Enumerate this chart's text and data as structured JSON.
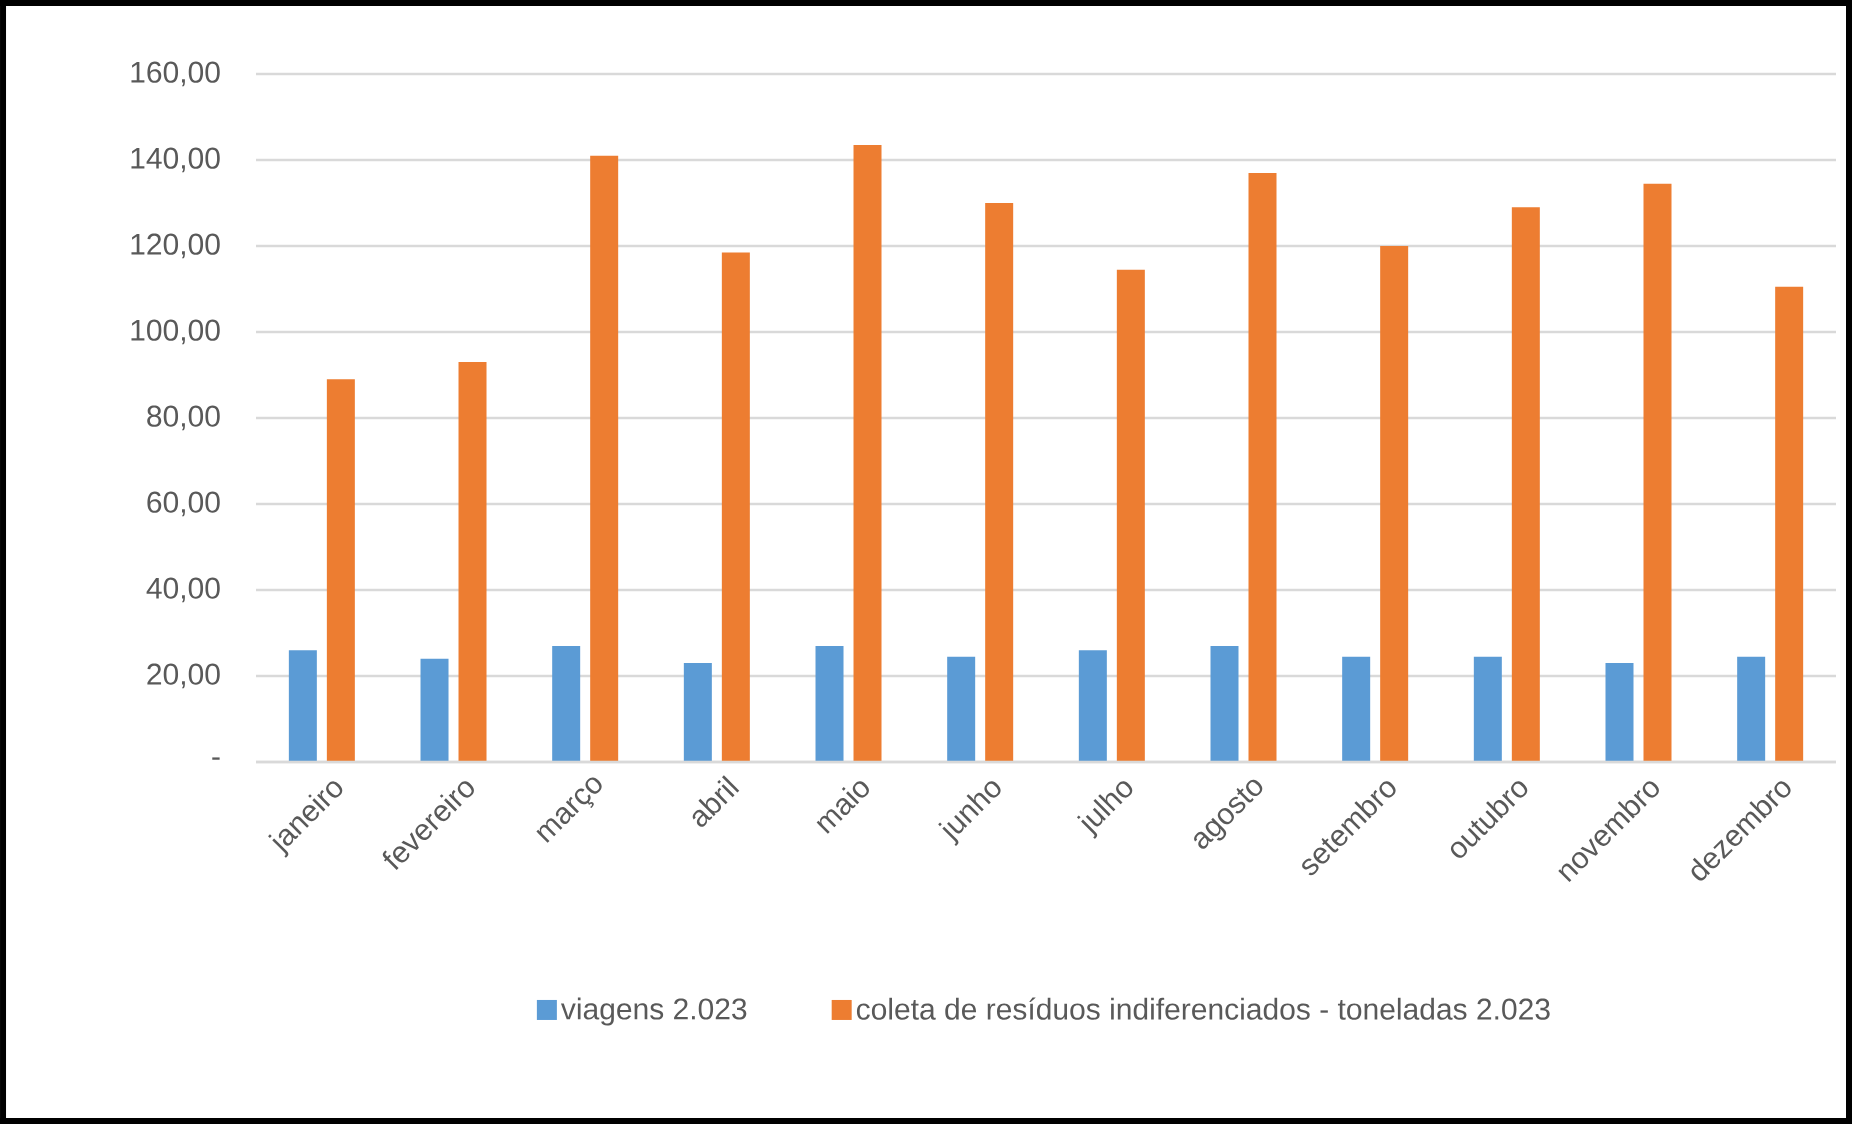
{
  "chart_data": {
    "type": "bar",
    "categories": [
      "janeiro",
      "fevereiro",
      "março",
      "abril",
      "maio",
      "junho",
      "julho",
      "agosto",
      "setembro",
      "outubro",
      "novembro",
      "dezembro"
    ],
    "series": [
      {
        "name": "viagens  2.023",
        "color": "#5b9bd5",
        "values": [
          26,
          24,
          27,
          23,
          27,
          24.5,
          26,
          27,
          24.5,
          24.5,
          23,
          24.5
        ]
      },
      {
        "name": "coleta de resíduos indiferenciados  - toneladas  2.023",
        "color": "#ed7d31",
        "values": [
          89,
          93,
          141,
          118.5,
          143.5,
          130,
          114.5,
          137,
          120,
          129,
          134.5,
          110.5
        ]
      }
    ],
    "ylim": [
      0,
      160
    ],
    "yticks": [
      {
        "value": 0,
        "label": "-"
      },
      {
        "value": 20,
        "label": "20,00"
      },
      {
        "value": 40,
        "label": "40,00"
      },
      {
        "value": 60,
        "label": "60,00"
      },
      {
        "value": 80,
        "label": "80,00"
      },
      {
        "value": 100,
        "label": "100,00"
      },
      {
        "value": 120,
        "label": "120,00"
      },
      {
        "value": 140,
        "label": "140,00"
      },
      {
        "value": 160,
        "label": "160,00"
      }
    ],
    "grid": "y",
    "legend": "bottom"
  }
}
